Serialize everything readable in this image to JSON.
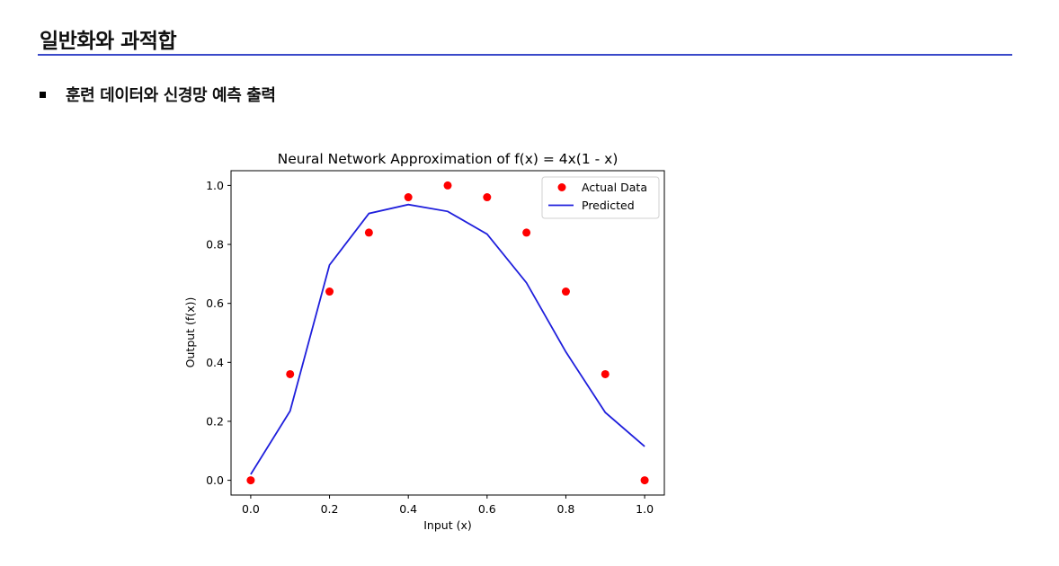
{
  "slide": {
    "title": "일반화와 과적합",
    "bullet": "훈련 데이터와 신경망 예측 출력"
  },
  "colors": {
    "rule": "#3a49c9",
    "actual": "#ff0000",
    "predicted": "#1f1fdc"
  },
  "chart_data": {
    "type": "scatter",
    "title": "Neural Network Approximation of f(x) = 4x(1 - x)",
    "xlabel": "Input (x)",
    "ylabel": "Output (f(x))",
    "xlim": [
      -0.05,
      1.05
    ],
    "ylim": [
      -0.05,
      1.05
    ],
    "xticks": [
      "0.0",
      "0.2",
      "0.4",
      "0.6",
      "0.8",
      "1.0"
    ],
    "yticks": [
      "0.0",
      "0.2",
      "0.4",
      "0.6",
      "0.8",
      "1.0"
    ],
    "grid": false,
    "legend_position": "top-right",
    "series": [
      {
        "name": "Actual Data",
        "type": "scatter",
        "x": [
          0.0,
          0.1,
          0.2,
          0.3,
          0.4,
          0.5,
          0.6,
          0.7,
          0.8,
          0.9,
          1.0
        ],
        "y": [
          0.0,
          0.36,
          0.64,
          0.84,
          0.96,
          1.0,
          0.96,
          0.84,
          0.64,
          0.36,
          0.0
        ]
      },
      {
        "name": "Predicted",
        "type": "line",
        "x": [
          0.0,
          0.1,
          0.2,
          0.3,
          0.4,
          0.5,
          0.6,
          0.7,
          0.8,
          0.9,
          1.0
        ],
        "y": [
          0.02,
          0.235,
          0.73,
          0.905,
          0.935,
          0.912,
          0.835,
          0.67,
          0.435,
          0.23,
          0.115
        ]
      }
    ]
  }
}
